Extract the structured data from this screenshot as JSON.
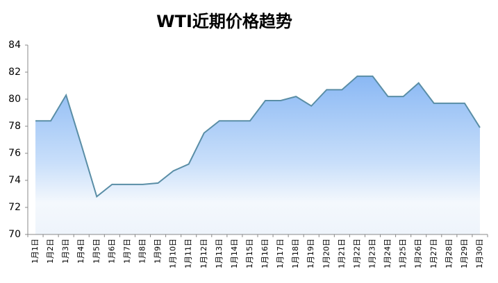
{
  "chart_data": {
    "type": "area",
    "title": "WTI近期价格趋势",
    "categories": [
      "1月1日",
      "1月2日",
      "1月3日",
      "1月4日",
      "1月5日",
      "1月6日",
      "1月7日",
      "1月8日",
      "1月9日",
      "1月10日",
      "1月11日",
      "1月12日",
      "1月13日",
      "1月14日",
      "1月15日",
      "1月16日",
      "1月17日",
      "1月18日",
      "1月19日",
      "1月20日",
      "1月21日",
      "1月22日",
      "1月23日",
      "1月24日",
      "1月25日",
      "1月26日",
      "1月27日",
      "1月28日",
      "1月29日",
      "1月30日"
    ],
    "values": [
      78.4,
      78.4,
      80.3,
      76.6,
      72.8,
      73.7,
      73.7,
      73.7,
      73.8,
      74.7,
      75.2,
      77.5,
      78.4,
      78.4,
      78.4,
      79.9,
      79.9,
      80.2,
      79.5,
      80.7,
      80.7,
      81.7,
      81.7,
      80.2,
      80.2,
      81.2,
      79.7,
      79.7,
      79.7,
      77.9
    ],
    "color": "#5a8ea6",
    "ylim": [
      70,
      84
    ],
    "yticks": [
      70,
      72,
      74,
      76,
      78,
      80,
      82,
      84
    ],
    "grid": false
  }
}
